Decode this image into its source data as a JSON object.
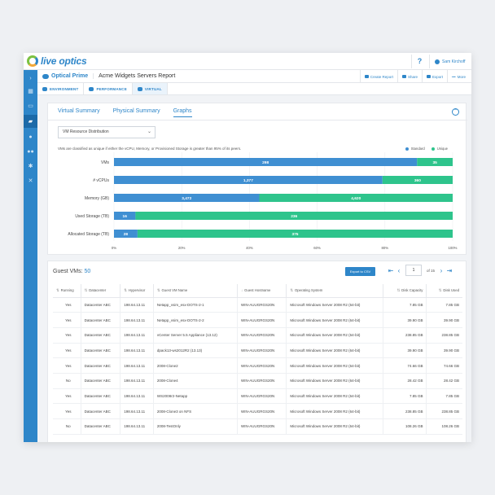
{
  "app": {
    "logo_text": "live optics",
    "help": "?",
    "user_name": "Sam Kirchoff"
  },
  "project": {
    "name": "Optical Prime",
    "report": "Acme Widgets Servers Report"
  },
  "header_actions": [
    "Create Report",
    "Share",
    "Export",
    "More"
  ],
  "more_glyph": "•••",
  "subtabs": [
    "ENVIRONMENT",
    "PERFORMANCE",
    "VIRTUAL"
  ],
  "tabs": [
    "Virtual Summary",
    "Physical Summary",
    "Graphs"
  ],
  "dropdown": {
    "value": "VM Resource Distribution"
  },
  "chart_note": "VMs are classified as unique if either the vCPU, Memory, or Provisioned Storage is greater than 95% of its peers.",
  "colors": {
    "standard": "#3f8fd2",
    "unique": "#2ec48c",
    "accent": "#2e86c9"
  },
  "chart_data": {
    "type": "bar",
    "orientation": "horizontal",
    "stacked": "percent",
    "categories": [
      "VMs",
      "# vCPUs",
      "Memory (GB)",
      "Used Storage (TB)",
      "Allocated Storage (TB)"
    ],
    "series": [
      {
        "name": "Standard",
        "values": [
          298,
          1377,
          3472,
          16,
          28
        ]
      },
      {
        "name": "Unique",
        "values": [
          35,
          360,
          4620,
          236,
          375
        ]
      }
    ],
    "xticks": [
      "0%",
      "20%",
      "40%",
      "60%",
      "80%",
      "100%"
    ],
    "xlim": [
      0,
      100
    ],
    "legend": "top-right"
  },
  "guest_vms": {
    "title": "Guest VMs:",
    "count": "50",
    "export_label": "Export to CSV",
    "page": "1",
    "of_label": "of 15",
    "columns": [
      "Running",
      "Datacenter",
      "Hypervisor",
      "Guest VM Name",
      "Guest Hostname",
      "Operating System",
      "Disk Capacity",
      "Disk Used"
    ],
    "rows": [
      [
        "Yes",
        "Datacenter ABC",
        "198.64.13.11",
        "Netapp_vsim_esx-DOTS-2-1",
        "WIN-AUUGRGS20N",
        "Microsoft Windows Server 2008 R2 (64-bit)",
        "7.85 GB",
        "7.85 GB"
      ],
      [
        "Yes",
        "Datacenter ABC",
        "198.64.13.11",
        "Netapp_vsim_esx-DOTS-2-2",
        "WIN-AUUGRGS20N",
        "Microsoft Windows Server 2008 R2 (64-bit)",
        "39.90 GB",
        "39.90 GB"
      ],
      [
        "Yes",
        "Datacenter ABC",
        "198.64.13.11",
        "vCenter Server 5.5 Appliance (13.12)",
        "WIN-AUUGRGS20N",
        "Microsoft Windows Server 2008 R2 (64-bit)",
        "238.85 GB",
        "238.85 GB"
      ],
      [
        "Yes",
        "Datacenter ABC",
        "198.64.13.11",
        "dpack13-ws2012R2 (13.13)",
        "WIN-AUUGRGS20N",
        "Microsoft Windows Server 2008 R2 (64-bit)",
        "39.90 GB",
        "39.90 GB"
      ],
      [
        "Yes",
        "Datacenter ABC",
        "198.64.13.11",
        "2008-Clone2",
        "WIN-AUUGRGS20N",
        "Microsoft Windows Server 2008 R2 (64-bit)",
        "74.66 GB",
        "74.66 GB"
      ],
      [
        "No",
        "Datacenter ABC",
        "198.64.13.11",
        "2008-Clone4",
        "WIN-AUUGRGS20N",
        "Microsoft Windows Server 2008 R2 (64-bit)",
        "28.42 GB",
        "28.42 GB"
      ],
      [
        "Yes",
        "Datacenter ABC",
        "198.64.13.11",
        "WS2008r2-Netapp",
        "WIN-AUUGRGS20N",
        "Microsoft Windows Server 2008 R2 (64-bit)",
        "7.85 GB",
        "7.85 GB"
      ],
      [
        "Yes",
        "Datacenter ABC",
        "198.64.13.11",
        "2008-Clone3 on NFS",
        "WIN-AUUGRGS20N",
        "Microsoft Windows Server 2008 R2 (64-bit)",
        "238.85 GB",
        "238.85 GB"
      ],
      [
        "No",
        "Datacenter ABC",
        "198.64.13.11",
        "2008-TestOnly",
        "WIN-AUUGRGS20N",
        "Microsoft Windows Server 2008 R2 (64-bit)",
        "108.26 GB",
        "108.26 GB"
      ]
    ]
  }
}
